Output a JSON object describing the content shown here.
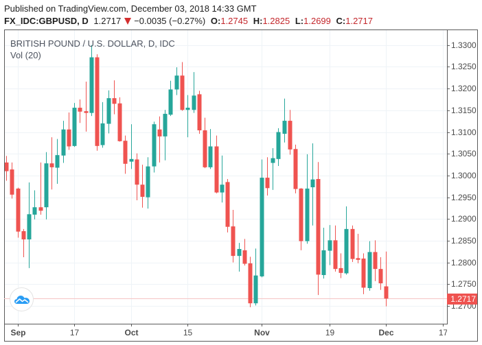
{
  "header": {
    "published": "Published on TradingView.com, December 03, 2018 14:33 GMT",
    "symbol": "FX_IDC:GBPUSD, D",
    "last": "1.2717",
    "change_icon": "down-triangle-icon",
    "change": "−0.0035 (−0.27%)",
    "ohlc": [
      {
        "label": "O:",
        "value": "1.2745"
      },
      {
        "label": "H:",
        "value": "1.2825"
      },
      {
        "label": "L:",
        "value": "1.2699"
      },
      {
        "label": "C:",
        "value": "1.2717"
      }
    ]
  },
  "legend": {
    "title": "BRITISH POUND / U.S. DOLLAR, D, IDC",
    "indicator": "Vol (20)"
  },
  "colors": {
    "up": "#26a69a",
    "down": "#ef5350",
    "grid": "#eef3f7",
    "axis": "#5a5a5a",
    "last_price_line": "#f6c4c4",
    "last_price_box": "#ef5350",
    "change_red": "#c3262b",
    "watermark_icon": "#2a9df4"
  },
  "price_axis": {
    "ticks": [
      "1.3300",
      "1.3250",
      "1.3200",
      "1.3150",
      "1.3100",
      "1.3050",
      "1.3000",
      "1.2950",
      "1.2900",
      "1.2850",
      "1.2800",
      "1.2750",
      "1.2700"
    ],
    "last_price_label": "1.2717"
  },
  "time_axis": {
    "labels": [
      {
        "text": "Sep",
        "index": 2,
        "bold": true
      },
      {
        "text": "17",
        "index": 12,
        "bold": false
      },
      {
        "text": "Oct",
        "index": 22,
        "bold": true
      },
      {
        "text": "15",
        "index": 32,
        "bold": false
      },
      {
        "text": "Nov",
        "index": 45,
        "bold": true
      },
      {
        "text": "19",
        "index": 57,
        "bold": false
      },
      {
        "text": "Dec",
        "index": 67,
        "bold": true
      },
      {
        "text": "17",
        "index": 77,
        "bold": false
      }
    ]
  },
  "watermark": {
    "icon": "tradingview-cloud-icon"
  },
  "chart_data": {
    "type": "candlestick",
    "title": "BRITISH POUND / U.S. DOLLAR, D, IDC",
    "symbol": "FX_IDC:GBPUSD",
    "interval": "D",
    "xlabel": "",
    "ylabel": "",
    "ylim": [
      1.2659,
      1.3336
    ],
    "grid": true,
    "last_price": 1.2717,
    "dates": [
      "Aug 30",
      "Aug 31",
      "Sep 3",
      "Sep 4",
      "Sep 5",
      "Sep 6",
      "Sep 7",
      "Sep 10",
      "Sep 11",
      "Sep 12",
      "Sep 13",
      "Sep 14",
      "Sep 17",
      "Sep 18",
      "Sep 19",
      "Sep 20",
      "Sep 21",
      "Sep 24",
      "Sep 25",
      "Sep 26",
      "Sep 27",
      "Sep 28",
      "Oct 1",
      "Oct 2",
      "Oct 3",
      "Oct 4",
      "Oct 5",
      "Oct 8",
      "Oct 9",
      "Oct 10",
      "Oct 11",
      "Oct 12",
      "Oct 15",
      "Oct 16",
      "Oct 17",
      "Oct 18",
      "Oct 19",
      "Oct 22",
      "Oct 23",
      "Oct 24",
      "Oct 25",
      "Oct 26",
      "Oct 29",
      "Oct 30",
      "Oct 31",
      "Nov 1",
      "Nov 2",
      "Nov 5",
      "Nov 6",
      "Nov 7",
      "Nov 8",
      "Nov 9",
      "Nov 12",
      "Nov 13",
      "Nov 14",
      "Nov 15",
      "Nov 16",
      "Nov 19",
      "Nov 20",
      "Nov 21",
      "Nov 22",
      "Nov 23",
      "Nov 26",
      "Nov 27",
      "Nov 28",
      "Nov 29",
      "Nov 30",
      "Dec 3"
    ],
    "open": [
      1.303,
      1.3014,
      1.297,
      1.2872,
      1.2853,
      1.291,
      1.2927,
      1.2927,
      1.3028,
      1.3018,
      1.3046,
      1.3106,
      1.3068,
      1.3156,
      1.3148,
      1.3144,
      1.3272,
      1.307,
      1.3119,
      1.3178,
      1.3166,
      1.308,
      1.3032,
      1.3037,
      1.2979,
      1.295,
      1.3021,
      1.3106,
      1.309,
      1.314,
      1.3198,
      1.323,
      1.3151,
      1.3151,
      1.3187,
      1.3104,
      1.3019,
      1.3067,
      1.2961,
      1.2985,
      1.2883,
      1.2815,
      1.2828,
      1.2798,
      1.2706,
      1.2768,
      1.2995,
      1.3029,
      1.3038,
      1.3096,
      1.3126,
      1.3061,
      1.297,
      1.2849,
      1.2973,
      1.2992,
      1.2771,
      1.2827,
      1.2851,
      1.2787,
      1.2775,
      1.2877,
      1.281,
      1.2809,
      1.2741,
      1.2824,
      1.2785,
      1.2745
    ],
    "high": [
      1.3045,
      1.303,
      1.2972,
      1.2877,
      1.2984,
      1.2966,
      1.303,
      1.3054,
      1.3088,
      1.3084,
      1.3126,
      1.3145,
      1.3167,
      1.3175,
      1.3216,
      1.33,
      1.3279,
      1.3169,
      1.3196,
      1.3219,
      1.318,
      1.3092,
      1.3118,
      1.3051,
      1.3025,
      1.3042,
      1.3124,
      1.3136,
      1.3151,
      1.3218,
      1.3249,
      1.3261,
      1.3185,
      1.3238,
      1.3195,
      1.3133,
      1.3107,
      1.3092,
      1.3046,
      1.2992,
      1.2921,
      1.2845,
      1.2854,
      1.2813,
      1.2832,
      1.3037,
      1.3042,
      1.3063,
      1.3109,
      1.3177,
      1.3151,
      1.3071,
      1.2971,
      1.3049,
      1.3074,
      1.3031,
      1.288,
      1.2886,
      1.2885,
      1.2821,
      1.2929,
      1.2885,
      1.2866,
      1.2821,
      1.2849,
      1.2851,
      1.2812,
      1.2825
    ],
    "low": [
      1.2988,
      1.2947,
      1.2857,
      1.2812,
      1.2787,
      1.2899,
      1.291,
      1.2899,
      1.2968,
      1.2981,
      1.3029,
      1.3059,
      1.3066,
      1.3121,
      1.3101,
      1.3137,
      1.3057,
      1.3064,
      1.3097,
      1.3141,
      1.3078,
      1.3004,
      1.3015,
      1.2943,
      1.2926,
      1.2924,
      1.3007,
      1.303,
      1.3035,
      1.3137,
      1.3185,
      1.3149,
      1.3088,
      1.3144,
      1.3096,
      1.3017,
      1.3015,
      1.2959,
      1.2938,
      1.2869,
      1.28,
      1.2779,
      1.2793,
      1.2697,
      1.2701,
      1.2766,
      1.2954,
      1.2967,
      1.3022,
      1.3076,
      1.3048,
      1.2959,
      1.2828,
      1.2843,
      1.2885,
      1.2725,
      1.2763,
      1.2794,
      1.2779,
      1.2764,
      1.2772,
      1.2801,
      1.2798,
      1.2727,
      1.2735,
      1.2757,
      1.2737,
      1.2699
    ],
    "close": [
      1.301,
      1.2956,
      1.2871,
      1.2853,
      1.2911,
      1.2927,
      1.2919,
      1.3028,
      1.3019,
      1.3047,
      1.3106,
      1.3067,
      1.3156,
      1.3147,
      1.3144,
      1.3272,
      1.3068,
      1.312,
      1.3178,
      1.3165,
      1.3079,
      1.3027,
      1.3038,
      1.2979,
      1.2951,
      1.3021,
      1.3118,
      1.309,
      1.3142,
      1.3198,
      1.323,
      1.3151,
      1.3156,
      1.3184,
      1.3104,
      1.3019,
      1.3067,
      1.2961,
      1.2979,
      1.2882,
      1.2815,
      1.2831,
      1.2797,
      1.2706,
      1.277,
      1.2995,
      1.2971,
      1.304,
      1.31,
      1.3126,
      1.306,
      1.2969,
      1.2849,
      1.297,
      1.2991,
      1.2772,
      1.2828,
      1.2851,
      1.2785,
      1.2776,
      1.2877,
      1.2808,
      1.2806,
      1.2742,
      1.2824,
      1.2785,
      1.2752,
      1.2717
    ],
    "y_ticks": [
      1.33,
      1.325,
      1.32,
      1.315,
      1.31,
      1.305,
      1.3,
      1.295,
      1.29,
      1.285,
      1.28,
      1.275,
      1.27
    ],
    "x_tick_labels": [
      "Sep",
      "17",
      "Oct",
      "15",
      "Nov",
      "19",
      "Dec",
      "17"
    ]
  }
}
